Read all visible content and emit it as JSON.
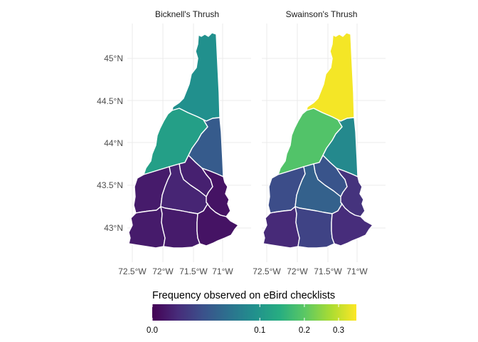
{
  "panels": [
    {
      "title": "Bicknell's Thrush"
    },
    {
      "title": "Swainson's Thrush"
    }
  ],
  "axes": {
    "y_ticks": [
      "45°N",
      "44.5°N",
      "44°N",
      "43.5°N",
      "43°N"
    ],
    "x_ticks": [
      "72.5°W",
      "72°W",
      "71.5°W",
      "71°W"
    ],
    "grid": true
  },
  "legend": {
    "title": "Frequency observed on eBird checklists",
    "ticks": [
      "0.0",
      "0.1",
      "0.2",
      "0.3"
    ],
    "tick_values": [
      0.0,
      0.1,
      0.2,
      0.3
    ],
    "range": [
      0.0,
      0.36
    ],
    "scale": "sqrt",
    "colormap": "viridis",
    "colors": [
      "#440154",
      "#472c7a",
      "#3b518b",
      "#2c718e",
      "#21908d",
      "#27ad81",
      "#5cc863",
      "#aadc32",
      "#fde725"
    ]
  },
  "chart_data": {
    "type": "choropleth",
    "region": "New Hampshire counties",
    "series": [
      {
        "name": "Bicknell's Thrush",
        "values": {
          "Coos": 0.09,
          "Grafton": 0.115,
          "Carroll": 0.03,
          "Sullivan": 0.002,
          "Merrimack": 0.004,
          "Belknap": 0.003,
          "Strafford": 0.001,
          "Cheshire": 0.002,
          "Hillsborough": 0.002,
          "Rockingham": 0.001
        }
      },
      {
        "name": "Swainson's Thrush",
        "values": {
          "Coos": 0.35,
          "Grafton": 0.19,
          "Carroll": 0.08,
          "Sullivan": 0.02,
          "Merrimack": 0.035,
          "Belknap": 0.025,
          "Strafford": 0.008,
          "Cheshire": 0.005,
          "Hillsborough": 0.015,
          "Rockingham": 0.006
        }
      }
    ]
  }
}
